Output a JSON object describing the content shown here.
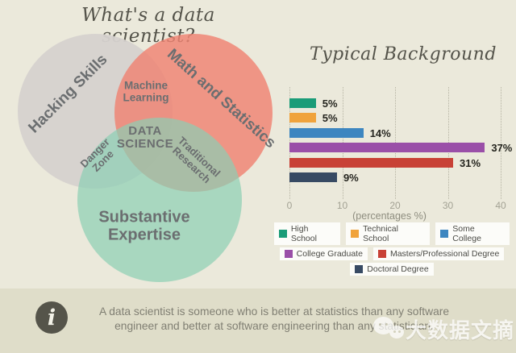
{
  "page": {
    "title": "What's a data scientist?",
    "background": "#ebe9db",
    "band_background": "#dfddc9"
  },
  "venn": {
    "circles": [
      {
        "id": "hacking",
        "label": "Hacking Skills",
        "color": "#d6d2cf",
        "opacity": 0.95
      },
      {
        "id": "math-stats",
        "label": "Math and Statistics",
        "color": "#ef8371",
        "opacity": 0.82
      },
      {
        "id": "substantive",
        "label": "Substantive Expertise",
        "color": "#8ccfb4",
        "opacity": 0.7
      }
    ],
    "labels": {
      "hacking": "Hacking Skills",
      "math": "Math and Statistics",
      "substantive_line1": "Substantive",
      "substantive_line2": "Expertise",
      "ml_line1": "Machine",
      "ml_line2": "Learning",
      "center_line1": "DATA",
      "center_line2": "SCIENCE",
      "danger_line1": "Danger",
      "danger_line2": "Zone",
      "trad_line1": "Traditional",
      "trad_line2": "Research"
    }
  },
  "chart_data": {
    "type": "bar",
    "orientation": "horizontal",
    "title": "Typical Background",
    "xlabel": "(percentages %)",
    "xlim": [
      0,
      40
    ],
    "xticks": [
      0,
      10,
      20,
      30,
      40
    ],
    "xtick_labels": [
      "0",
      "10",
      "20",
      "30",
      "40"
    ],
    "grid": "dotted-vertical",
    "legend_position": "bottom",
    "categories": [
      "High School",
      "Technical School",
      "Some College",
      "College Graduate",
      "Masters/Professional Degree",
      "Doctoral Degree"
    ],
    "values": [
      5,
      5,
      14,
      37,
      31,
      9
    ],
    "value_labels": [
      "5%",
      "5%",
      "14%",
      "37%",
      "31%",
      "9%"
    ],
    "colors": [
      "#1a9c78",
      "#f0a33c",
      "#3d86c0",
      "#9a4fa8",
      "#c84136",
      "#374a63"
    ]
  },
  "footer": {
    "info_icon": "i",
    "text_line1": "A data scientist is someone who is better at statistics than any software",
    "text_line2": "engineer and better at software engineering than any statistician."
  },
  "watermark": {
    "text": "大数据文摘"
  }
}
